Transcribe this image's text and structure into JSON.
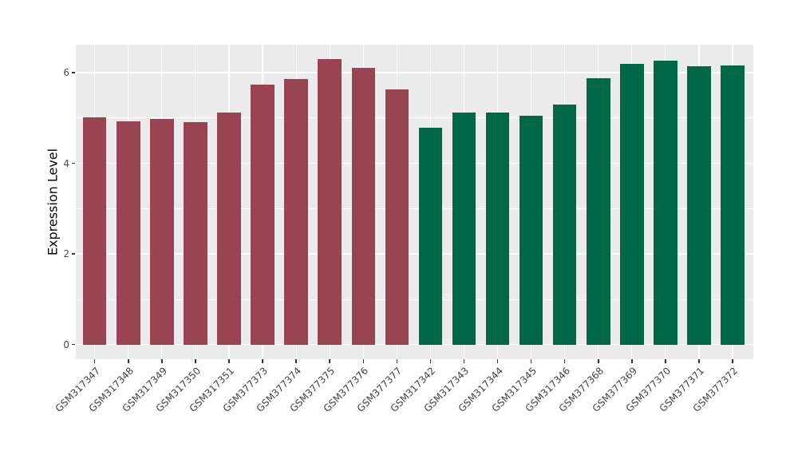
{
  "chart_data": {
    "type": "bar",
    "title": "",
    "xlabel": "",
    "ylabel": "Expression Level",
    "categories": [
      "GSM317347",
      "GSM317348",
      "GSM317349",
      "GSM317350",
      "GSM317351",
      "GSM377373",
      "GSM377374",
      "GSM377375",
      "GSM377376",
      "GSM377377",
      "GSM317342",
      "GSM317343",
      "GSM317344",
      "GSM317345",
      "GSM317346",
      "GSM377368",
      "GSM377369",
      "GSM377370",
      "GSM377371",
      "GSM377372"
    ],
    "values": [
      5.02,
      4.92,
      4.98,
      4.91,
      5.11,
      5.74,
      5.86,
      6.29,
      6.11,
      5.63,
      4.79,
      5.12,
      5.11,
      5.04,
      5.29,
      5.87,
      6.2,
      6.27,
      6.14,
      6.15
    ],
    "bar_group_index": [
      0,
      0,
      0,
      0,
      0,
      0,
      0,
      0,
      0,
      0,
      1,
      1,
      1,
      1,
      1,
      1,
      1,
      1,
      1,
      1
    ],
    "group_colors": [
      "#9A4352",
      "#006747"
    ],
    "yticks": [
      0,
      2,
      4,
      6
    ],
    "minor_yticks": [
      1,
      3,
      5
    ],
    "ylim": [
      -0.31,
      6.62
    ],
    "grid": "on",
    "legend_position": "none",
    "panel_bg": "#EBEBEB",
    "grid_color": "#FFFFFF",
    "tick_mark_color": "#333333",
    "axis_text_color": "#4D4D4D"
  }
}
